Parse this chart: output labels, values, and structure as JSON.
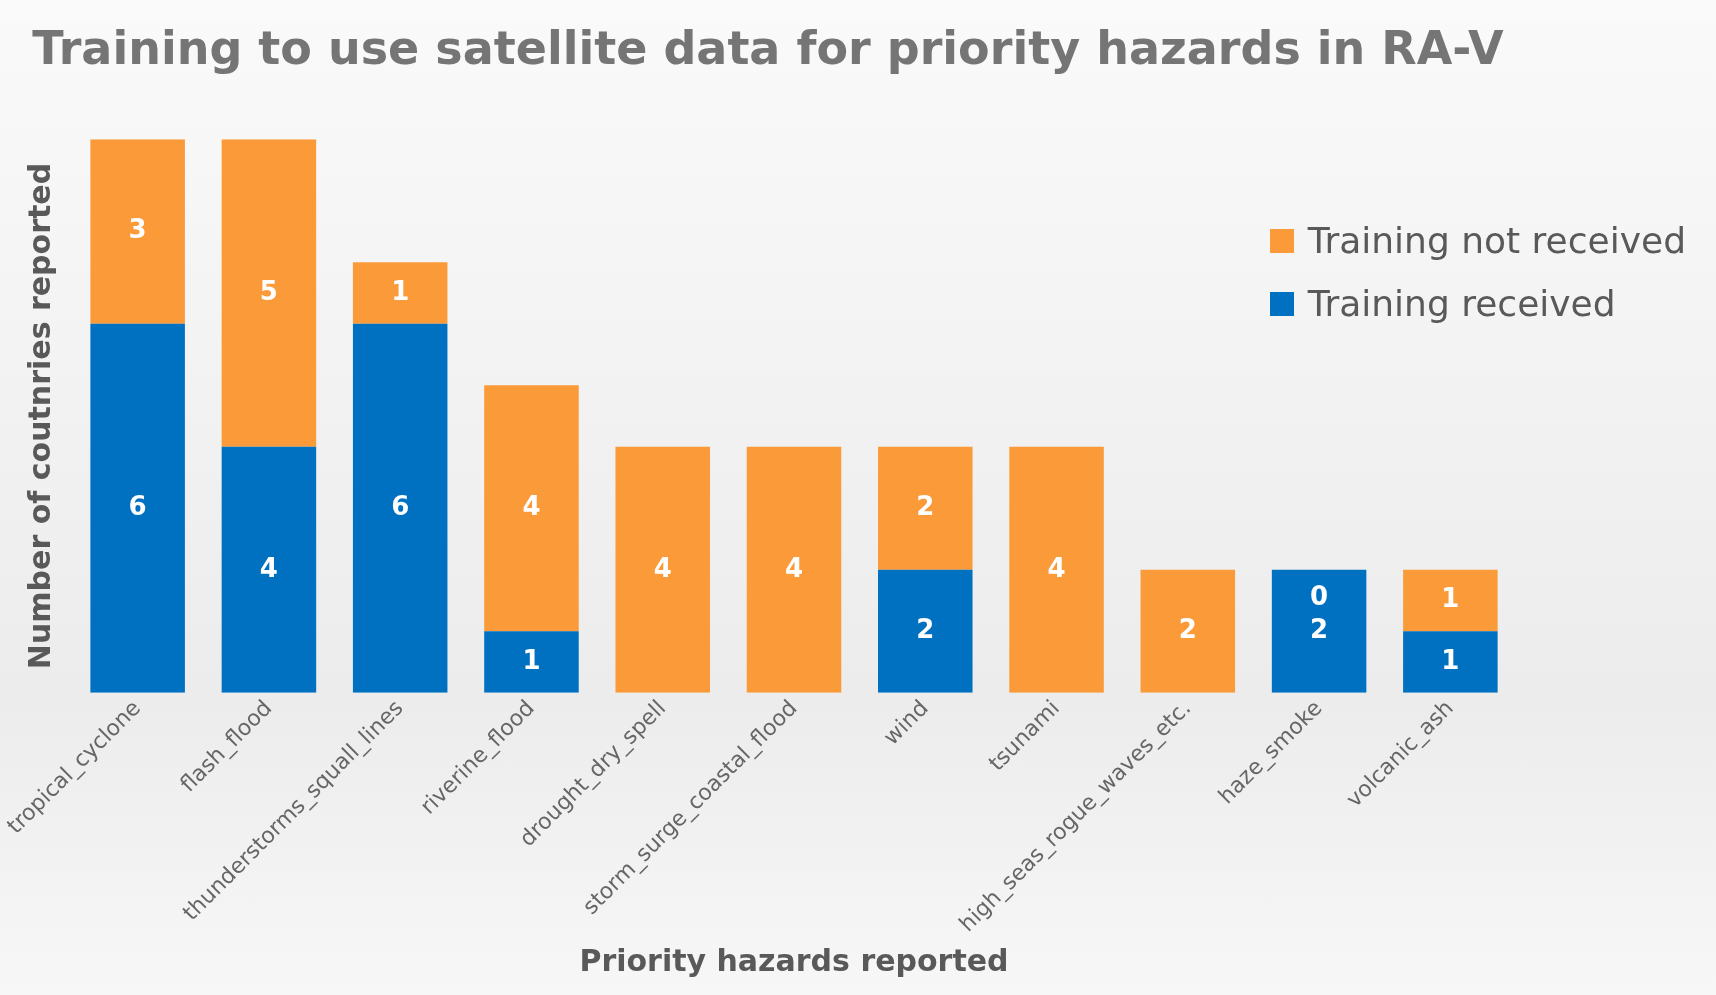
{
  "chart_data": {
    "type": "bar",
    "title": "Training to use satellite data for priority hazards in RA-V",
    "xlabel": "Priority hazards reported",
    "ylabel": "Number of coutnries reported",
    "categories": [
      "tropical_cyclone",
      "flash_flood",
      "thunderstorms_squall_lines",
      "riverine_flood",
      "drought_dry_spell",
      "storm_surge_coastal_flood",
      "wind",
      "tsunami",
      "high_seas_rogue_waves_etc.",
      "haze_smoke",
      "volcanic_ash"
    ],
    "stacked": true,
    "data_labels": true,
    "legend": "top right",
    "grid": false,
    "tick_labels": "x",
    "series": [
      {
        "name": "Training received",
        "color": "#0070c0",
        "values": [
          6,
          4,
          6,
          1,
          null,
          null,
          2,
          null,
          null,
          2,
          1
        ]
      },
      {
        "name": "Training not received",
        "color": "#fb9a38",
        "values": [
          3,
          5,
          1,
          4,
          4,
          4,
          2,
          4,
          2,
          0,
          1
        ]
      }
    ]
  }
}
